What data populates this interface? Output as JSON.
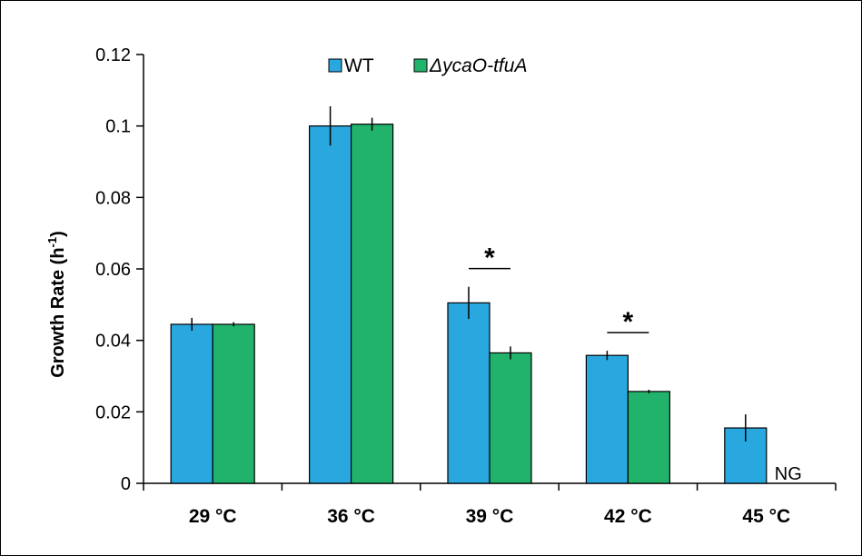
{
  "chart_data": {
    "type": "bar",
    "title": "",
    "xlabel": "",
    "ylabel": "Growth Rate (h",
    "ylabel_superscript": "-1",
    "ylabel_suffix": ")",
    "ylim": [
      0,
      0.12
    ],
    "yticks": [
      "0",
      "0.02",
      "0.04",
      "0.06",
      "0.08",
      "0.1",
      "0.12"
    ],
    "ytick_values": [
      0,
      0.02,
      0.04,
      0.06,
      0.08,
      0.1,
      0.12
    ],
    "categories": [
      "29 °C",
      "36 °C",
      "39 °C",
      "42 °C",
      "45 °C"
    ],
    "grid": false,
    "legend_position": "top",
    "series": [
      {
        "name": "WT",
        "color": "#29a8e0",
        "values": [
          0.0445,
          0.1,
          0.0505,
          0.0358,
          0.0155
        ],
        "errors": [
          0.0018,
          0.0055,
          0.0045,
          0.0013,
          0.0038
        ]
      },
      {
        "name": "ΔycaO-tfuA",
        "color": "#21b36b",
        "values": [
          0.0445,
          0.1005,
          0.0365,
          0.0257,
          null
        ],
        "errors": [
          0.0006,
          0.0018,
          0.0018,
          0.0005,
          null
        ]
      }
    ],
    "annotations": {
      "ng_label": "NG",
      "significance_symbol": "*"
    }
  }
}
